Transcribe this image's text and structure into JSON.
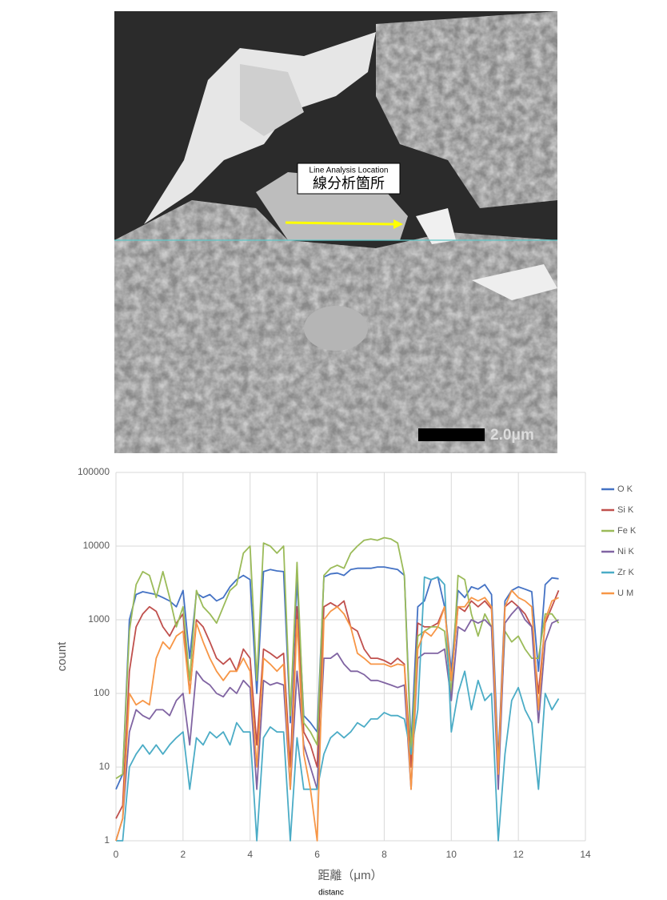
{
  "image": {
    "annotation_title": "Line Analysis Location",
    "annotation_label": "線分析箇所",
    "scale_bar": "2.0μm"
  },
  "chart_data": {
    "type": "line",
    "y_label": "count",
    "x_label": "距離（μm）",
    "x_caption": "distanc",
    "log_scale": true,
    "grid": true,
    "legend": "right",
    "xlim": [
      0,
      14
    ],
    "xticks": [
      0,
      2,
      4,
      6,
      8,
      10,
      12,
      14
    ],
    "ylim": [
      1,
      100000
    ],
    "yticks": [
      1,
      10,
      100,
      1000,
      10000,
      100000
    ],
    "x": [
      0,
      0.2,
      0.4,
      0.6,
      0.8,
      1.0,
      1.2,
      1.4,
      1.6,
      1.8,
      2.0,
      2.2,
      2.4,
      2.6,
      2.8,
      3.0,
      3.2,
      3.4,
      3.6,
      3.8,
      4.0,
      4.2,
      4.4,
      4.6,
      4.8,
      5.0,
      5.2,
      5.4,
      5.6,
      5.8,
      6.0,
      6.2,
      6.4,
      6.6,
      6.8,
      7.0,
      7.2,
      7.4,
      7.6,
      7.8,
      8.0,
      8.2,
      8.4,
      8.6,
      8.8,
      9.0,
      9.2,
      9.4,
      9.6,
      9.8,
      10.0,
      10.2,
      10.4,
      10.6,
      10.8,
      11.0,
      11.2,
      11.4,
      11.6,
      11.8,
      12.0,
      12.2,
      12.4,
      12.6,
      12.8,
      13.0,
      13.2
    ],
    "series": [
      {
        "name": "O K",
        "color": "#4472c4",
        "values": [
          5,
          8,
          1000,
          2200,
          2400,
          2300,
          2200,
          2000,
          1800,
          1500,
          2500,
          300,
          2300,
          2000,
          2200,
          1800,
          2000,
          2800,
          3500,
          4000,
          3500,
          100,
          4500,
          4800,
          4600,
          4500,
          40,
          3500,
          50,
          40,
          30,
          3800,
          4200,
          4300,
          4000,
          4800,
          5000,
          5000,
          5000,
          5200,
          5200,
          5000,
          4800,
          4000,
          20,
          1500,
          1800,
          3500,
          3800,
          1500,
          200,
          2500,
          2000,
          2800,
          2600,
          3000,
          2200,
          12,
          1800,
          2500,
          2800,
          2600,
          2400,
          200,
          3000,
          3700,
          3600
        ]
      },
      {
        "name": "Si K",
        "color": "#c0504d",
        "values": [
          2,
          3,
          200,
          800,
          1200,
          1500,
          1300,
          800,
          600,
          900,
          1200,
          100,
          1000,
          800,
          500,
          300,
          250,
          300,
          200,
          400,
          300,
          20,
          400,
          350,
          300,
          350,
          10,
          1500,
          30,
          20,
          10,
          1500,
          1700,
          1500,
          1800,
          800,
          700,
          400,
          300,
          300,
          280,
          250,
          300,
          250,
          10,
          900,
          800,
          800,
          900,
          1500,
          150,
          1500,
          1300,
          1800,
          1500,
          1800,
          1400,
          10,
          1500,
          1800,
          1500,
          1200,
          800,
          100,
          900,
          1500,
          2500
        ]
      },
      {
        "name": "Fe K",
        "color": "#9bbb59",
        "values": [
          7,
          8,
          700,
          3000,
          4500,
          4000,
          2000,
          4500,
          2000,
          800,
          1500,
          150,
          2500,
          1500,
          1200,
          900,
          1500,
          2500,
          3000,
          8000,
          10000,
          150,
          11000,
          10000,
          8000,
          10000,
          50,
          6000,
          40,
          30,
          20,
          4000,
          5000,
          5500,
          5000,
          8000,
          10000,
          12000,
          12500,
          12000,
          13000,
          12500,
          11000,
          4000,
          15,
          600,
          700,
          800,
          800,
          700,
          100,
          4000,
          3500,
          1200,
          600,
          1200,
          800,
          10,
          700,
          500,
          600,
          400,
          300,
          300,
          1200,
          1200,
          900
        ]
      },
      {
        "name": "Ni K",
        "color": "#8064a2",
        "values": [
          1,
          2,
          30,
          60,
          50,
          45,
          60,
          60,
          50,
          80,
          100,
          20,
          200,
          150,
          130,
          100,
          90,
          120,
          100,
          150,
          120,
          5,
          150,
          130,
          140,
          130,
          5,
          200,
          20,
          10,
          5,
          300,
          300,
          350,
          250,
          200,
          200,
          180,
          150,
          150,
          140,
          130,
          120,
          130,
          5,
          300,
          350,
          350,
          350,
          400,
          80,
          800,
          700,
          1000,
          900,
          1000,
          800,
          5,
          900,
          1200,
          1500,
          1000,
          800,
          40,
          500,
          900,
          1000
        ]
      },
      {
        "name": "Zr K",
        "color": "#4bacc6",
        "values": [
          1,
          1,
          10,
          15,
          20,
          15,
          20,
          15,
          20,
          25,
          30,
          5,
          25,
          20,
          30,
          25,
          30,
          20,
          40,
          30,
          30,
          1,
          25,
          35,
          30,
          30,
          1,
          25,
          5,
          5,
          5,
          15,
          25,
          30,
          25,
          30,
          40,
          35,
          45,
          45,
          55,
          50,
          50,
          45,
          15,
          60,
          3800,
          3500,
          3800,
          3000,
          30,
          100,
          200,
          60,
          150,
          80,
          100,
          1,
          15,
          80,
          120,
          60,
          40,
          5,
          100,
          60,
          85
        ]
      },
      {
        "name": "U M",
        "color": "#f79646",
        "values": [
          1,
          2,
          100,
          70,
          80,
          70,
          300,
          500,
          400,
          600,
          700,
          100,
          900,
          500,
          300,
          200,
          150,
          200,
          200,
          300,
          200,
          10,
          300,
          250,
          200,
          250,
          5,
          1000,
          15,
          5,
          1,
          1000,
          1300,
          1500,
          1200,
          800,
          350,
          300,
          250,
          250,
          250,
          230,
          250,
          240,
          5,
          400,
          700,
          600,
          800,
          1500,
          150,
          1500,
          1500,
          2000,
          1800,
          2000,
          1500,
          8,
          1500,
          2500,
          2000,
          1800,
          1500,
          60,
          1000,
          1800,
          2000
        ]
      }
    ]
  }
}
